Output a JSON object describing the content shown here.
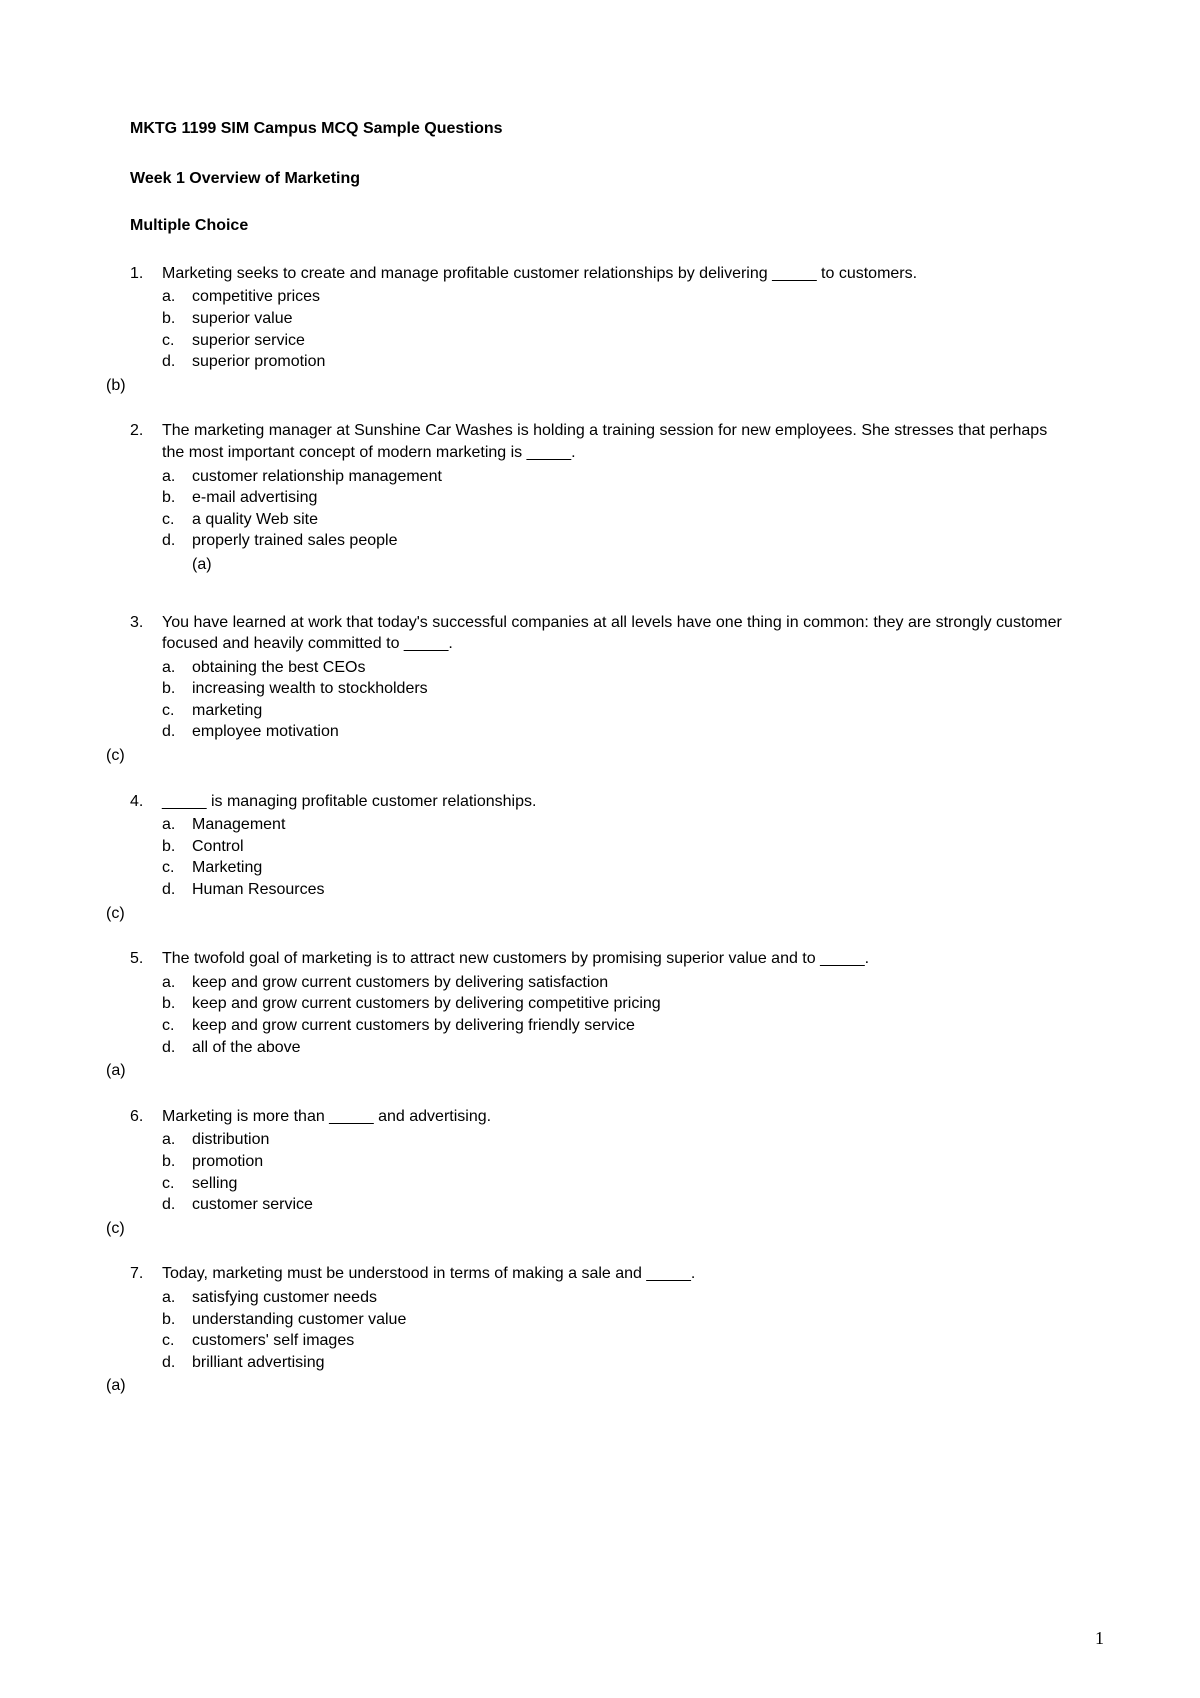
{
  "document": {
    "title": "MKTG 1199 SIM Campus   MCQ Sample Questions",
    "subtitle": "Week 1  Overview of Marketing",
    "section_label": "Multiple Choice",
    "page_number": "1",
    "text_color": "#000000",
    "background_color": "#ffffff",
    "font_family": "Arial, Helvetica, sans-serif",
    "fontsize_body": 16,
    "fontsize_pagenum": 18
  },
  "questions": [
    {
      "number": "1.",
      "text": "Marketing seeks to create and manage profitable customer relationships by delivering _____ to customers.",
      "options": [
        {
          "letter": "a.",
          "text": "competitive prices"
        },
        {
          "letter": "b.",
          "text": "superior value"
        },
        {
          "letter": "c.",
          "text": "superior service"
        },
        {
          "letter": "d.",
          "text": "superior promotion"
        }
      ],
      "answer": "(b)",
      "answer_inline": false
    },
    {
      "number": "2.",
      "text": "The marketing manager at Sunshine Car Washes is holding a training session for new employees.  She stresses that perhaps the most important concept of modern marketing is _____.",
      "options": [
        {
          "letter": "a.",
          "text": "customer relationship management"
        },
        {
          "letter": "b.",
          "text": "e-mail advertising"
        },
        {
          "letter": "c.",
          "text": "a quality Web site"
        },
        {
          "letter": "d.",
          "text": "properly trained sales people"
        }
      ],
      "answer": "(a)",
      "answer_inline": true
    },
    {
      "number": "3.",
      "text": "You have learned at work that today's successful companies at all levels have one thing in common: they are strongly customer focused and heavily committed to _____.",
      "options": [
        {
          "letter": "a.",
          "text": "obtaining the best CEOs"
        },
        {
          "letter": "b.",
          "text": "increasing wealth to stockholders"
        },
        {
          "letter": "c.",
          "text": "marketing"
        },
        {
          "letter": "d.",
          "text": "employee motivation"
        }
      ],
      "answer": "(c)",
      "answer_inline": false
    },
    {
      "number": "4.",
      "text": "_____ is managing profitable customer relationships.",
      "options": [
        {
          "letter": "a.",
          "text": "Management"
        },
        {
          "letter": "b.",
          "text": "Control"
        },
        {
          "letter": "c.",
          "text": "Marketing"
        },
        {
          "letter": "d.",
          "text": "Human Resources"
        }
      ],
      "answer": "(c)",
      "answer_inline": false
    },
    {
      "number": "5.",
      "text": "The twofold goal of marketing is to attract new customers by promising superior value and to _____.",
      "options": [
        {
          "letter": "a.",
          "text": "keep and grow current customers by delivering satisfaction"
        },
        {
          "letter": "b.",
          "text": "keep and grow current customers by delivering competitive pricing"
        },
        {
          "letter": "c.",
          "text": "keep and grow current customers by delivering friendly service"
        },
        {
          "letter": "d.",
          "text": "all of the above"
        }
      ],
      "answer": "(a)",
      "answer_inline": false
    },
    {
      "number": "6.",
      "text": "Marketing is more than _____ and advertising.",
      "options": [
        {
          "letter": "a.",
          "text": "distribution"
        },
        {
          "letter": "b.",
          "text": "promotion"
        },
        {
          "letter": "c.",
          "text": "selling"
        },
        {
          "letter": "d.",
          "text": "customer service"
        }
      ],
      "answer": "(c)",
      "answer_inline": false
    },
    {
      "number": "7.",
      "text": "Today, marketing must be understood in terms of making a sale and _____.",
      "options": [
        {
          "letter": "a.",
          "text": "satisfying customer needs"
        },
        {
          "letter": "b.",
          "text": "understanding customer value"
        },
        {
          "letter": "c.",
          "text": "customers' self images"
        },
        {
          "letter": "d.",
          "text": "brilliant advertising"
        }
      ],
      "answer": "(a)",
      "answer_inline": false
    }
  ]
}
